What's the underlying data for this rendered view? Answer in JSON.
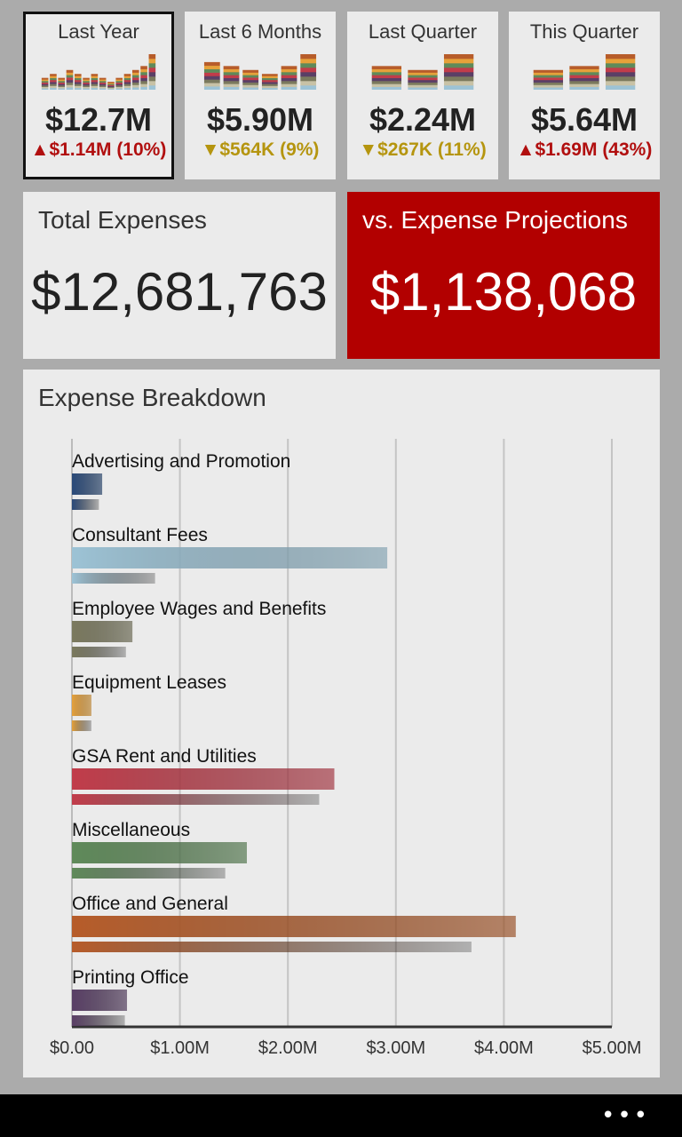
{
  "periods": [
    {
      "title": "Last Year",
      "amount": "$12.7M",
      "delta_arrow": "▲",
      "delta_text": "$1.14M (10%)",
      "direction": "up",
      "selected": true,
      "bars": [
        3,
        4,
        3,
        5,
        4,
        3,
        4,
        3,
        2,
        3,
        4,
        5,
        6,
        9
      ]
    },
    {
      "title": "Last 6 Months",
      "amount": "$5.90M",
      "delta_arrow": "▼",
      "delta_text": "$564K (9%)",
      "direction": "down",
      "selected": false,
      "bars": [
        7,
        6,
        5,
        4,
        6,
        9
      ]
    },
    {
      "title": "Last Quarter",
      "amount": "$2.24M",
      "delta_arrow": "▼",
      "delta_text": "$267K (11%)",
      "direction": "down",
      "selected": false,
      "bars": [
        6,
        5,
        9
      ]
    },
    {
      "title": "This Quarter",
      "amount": "$5.64M",
      "delta_arrow": "▲",
      "delta_text": "$1.69M (43%)",
      "direction": "up",
      "selected": false,
      "bars": [
        5,
        6,
        9
      ]
    }
  ],
  "total_expenses": {
    "title": "Total Expenses",
    "value": "$12,681,763"
  },
  "projections": {
    "title": "vs. Expense Projections",
    "value": "$1,138,068"
  },
  "breakdown": {
    "title": "Expense Breakdown"
  },
  "chart_data": {
    "type": "bar",
    "orientation": "horizontal",
    "title": "Expense Breakdown",
    "categories": [
      "Advertising and Promotion",
      "Consultant Fees",
      "Employee Wages and Benefits",
      "Equipment Leases",
      "GSA Rent and Utilities",
      "Miscellaneous",
      "Office and General",
      "Printing Office"
    ],
    "series": [
      {
        "values": [
          0.28,
          2.92,
          0.56,
          0.18,
          2.43,
          1.62,
          4.11,
          0.51
        ]
      },
      {
        "values": [
          0.25,
          0.77,
          0.5,
          0.18,
          2.29,
          1.42,
          3.7,
          0.49
        ]
      }
    ],
    "colors": [
      "#2a4a7a",
      "#9dc3d6",
      "#7b7a5e",
      "#e6a13a",
      "#c13c4a",
      "#5f8a5a",
      "#b75c2a",
      "#5a3f66"
    ],
    "xlim": [
      0,
      5
    ],
    "xticks": [
      "$0.00",
      "$1.00M",
      "$2.00M",
      "$3.00M",
      "$4.00M",
      "$5.00M"
    ],
    "grid": true
  },
  "appbar": {
    "more": "•••"
  }
}
